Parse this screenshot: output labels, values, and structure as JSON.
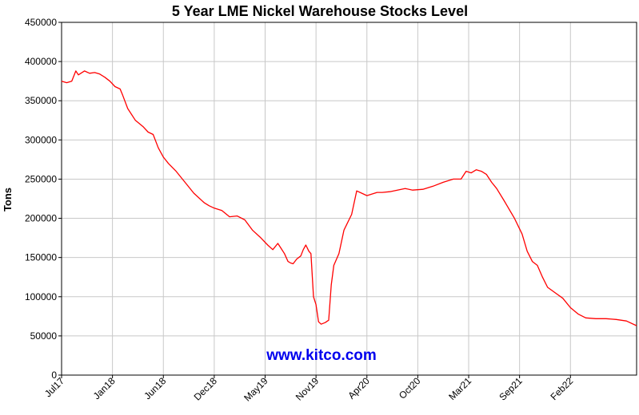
{
  "chart_data": {
    "type": "line",
    "title": "5 Year LME Nickel Warehouse Stocks Level",
    "ylabel": "Tons",
    "xlabel": "",
    "watermark": "www.kitco.com",
    "ylim": [
      0,
      450000
    ],
    "y_ticks": [
      0,
      50000,
      100000,
      150000,
      200000,
      250000,
      300000,
      350000,
      400000,
      450000
    ],
    "y_tick_labels": [
      "0",
      "50000",
      "100000",
      "150000",
      "200000",
      "250000",
      "300000",
      "350000",
      "400000",
      "450000"
    ],
    "x_tick_labels": [
      "Jul17",
      "Jan18",
      "Jun18",
      "Dec18",
      "May19",
      "Nov19",
      "Apr20",
      "Oct20",
      "Mar21",
      "Sep21",
      "Feb22"
    ],
    "x_tick_positions": [
      0,
      1,
      2,
      3,
      4,
      5,
      6,
      7,
      8,
      9,
      10
    ],
    "xlim": [
      0,
      11.3
    ],
    "grid": true,
    "colors": {
      "line": "#ff0000",
      "grid": "#c8c8c8",
      "watermark": "#0000ee"
    },
    "series": [
      {
        "x": [
          0,
          0.1,
          0.2,
          0.28,
          0.33,
          0.45,
          0.55,
          0.65,
          0.75,
          0.85,
          0.95,
          1.05,
          1.15,
          1.2,
          1.3,
          1.45,
          1.6,
          1.7,
          1.8,
          1.9,
          2.0,
          2.1,
          2.25,
          2.4,
          2.6,
          2.8,
          2.9,
          3.0,
          3.15,
          3.3,
          3.45,
          3.6,
          3.75,
          3.9,
          4.05,
          4.15,
          4.25,
          4.3,
          4.38,
          4.45,
          4.5,
          4.55,
          4.62,
          4.7,
          4.75,
          4.8,
          4.86,
          4.9,
          4.95,
          5.0,
          5.05,
          5.1,
          5.18,
          5.25,
          5.3,
          5.35,
          5.45,
          5.55,
          5.7,
          5.8,
          5.9,
          6.0,
          6.1,
          6.2,
          6.3,
          6.45,
          6.6,
          6.75,
          6.9,
          7.1,
          7.3,
          7.5,
          7.7,
          7.85,
          7.95,
          8.05,
          8.15,
          8.25,
          8.35,
          8.45,
          8.55,
          8.7,
          8.9,
          9.05,
          9.15,
          9.25,
          9.35,
          9.45,
          9.55,
          9.7,
          9.85,
          10.0,
          10.15,
          10.3,
          10.5,
          10.7,
          10.9,
          11.1,
          11.3
        ],
        "y": [
          375000,
          373000,
          375000,
          388000,
          383000,
          388000,
          385000,
          386000,
          384000,
          380000,
          375000,
          368000,
          365000,
          357000,
          340000,
          325000,
          317000,
          310000,
          307000,
          290000,
          278000,
          270000,
          260000,
          248000,
          232000,
          220000,
          216000,
          213000,
          210000,
          202000,
          203000,
          198000,
          185000,
          176000,
          166000,
          160000,
          168000,
          163000,
          155000,
          145000,
          143000,
          142000,
          148000,
          152000,
          160000,
          166000,
          158000,
          155000,
          100000,
          90000,
          68000,
          65000,
          67000,
          70000,
          115000,
          140000,
          155000,
          185000,
          205000,
          235000,
          232000,
          229000,
          231000,
          233000,
          233000,
          234000,
          236000,
          238000,
          236000,
          237000,
          241000,
          246000,
          250000,
          250000,
          260000,
          258000,
          262000,
          260000,
          256000,
          246000,
          238000,
          222000,
          200000,
          180000,
          158000,
          145000,
          140000,
          125000,
          112000,
          105000,
          98000,
          86000,
          78000,
          73000,
          72000,
          72000,
          71000,
          69000,
          63000
        ]
      }
    ]
  }
}
